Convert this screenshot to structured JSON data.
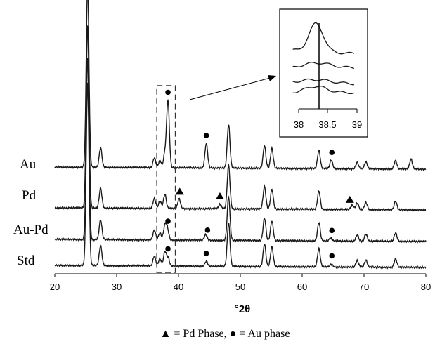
{
  "chart_data": {
    "type": "line",
    "xlabel": "°2θ",
    "ylabel": "",
    "xlim": [
      20,
      80
    ],
    "x_ticks": [
      "20",
      "30",
      "40",
      "50",
      "60",
      "70",
      "80"
    ],
    "grid": false,
    "legend": "▲ = Pd Phase, ● = Au phase",
    "series": [
      {
        "name": "Au",
        "baseline": 0,
        "extra_peaks": [
          [
            38.3,
            95
          ],
          [
            44.5,
            35
          ],
          [
            64.7,
            12
          ],
          [
            77.6,
            14
          ]
        ],
        "au_markers": [
          38.3,
          44.5,
          64.8
        ],
        "pd_markers": []
      },
      {
        "name": "Pd",
        "baseline": 1,
        "extra_peaks": [
          [
            40.1,
            14
          ],
          [
            46.7,
            6
          ],
          [
            68.1,
            6
          ]
        ],
        "au_markers": [],
        "pd_markers": [
          40.2,
          46.7,
          67.7
        ]
      },
      {
        "name": "Au-Pd",
        "baseline": 2,
        "extra_peaks": [
          [
            38.2,
            16
          ],
          [
            44.4,
            8
          ],
          [
            64.6,
            4
          ]
        ],
        "au_markers": [
          38.3,
          44.7,
          64.8
        ],
        "pd_markers": []
      },
      {
        "name": "Std",
        "baseline": 3,
        "extra_peaks": [
          [
            38.3,
            12
          ],
          [
            44.5,
            7
          ],
          [
            64.7,
            4
          ]
        ],
        "au_markers": [
          38.3,
          44.5,
          64.8
        ],
        "pd_markers": []
      }
    ],
    "common_peaks": [
      [
        25.3,
        260
      ],
      [
        27.4,
        28
      ],
      [
        36.1,
        14
      ],
      [
        37.0,
        10
      ],
      [
        37.8,
        20
      ],
      [
        48.1,
        62
      ],
      [
        53.9,
        32
      ],
      [
        55.1,
        28
      ],
      [
        62.7,
        26
      ],
      [
        68.9,
        9
      ],
      [
        70.3,
        10
      ],
      [
        75.1,
        12
      ]
    ],
    "highlight_region": [
      36.5,
      39.5
    ],
    "inset": {
      "xlim": [
        38,
        39
      ],
      "x_ticks": [
        "38",
        "38.5",
        "39"
      ],
      "marker_line_x": 38.3
    },
    "colors": {
      "line": "#1a1a1a",
      "box": "#333333"
    }
  }
}
